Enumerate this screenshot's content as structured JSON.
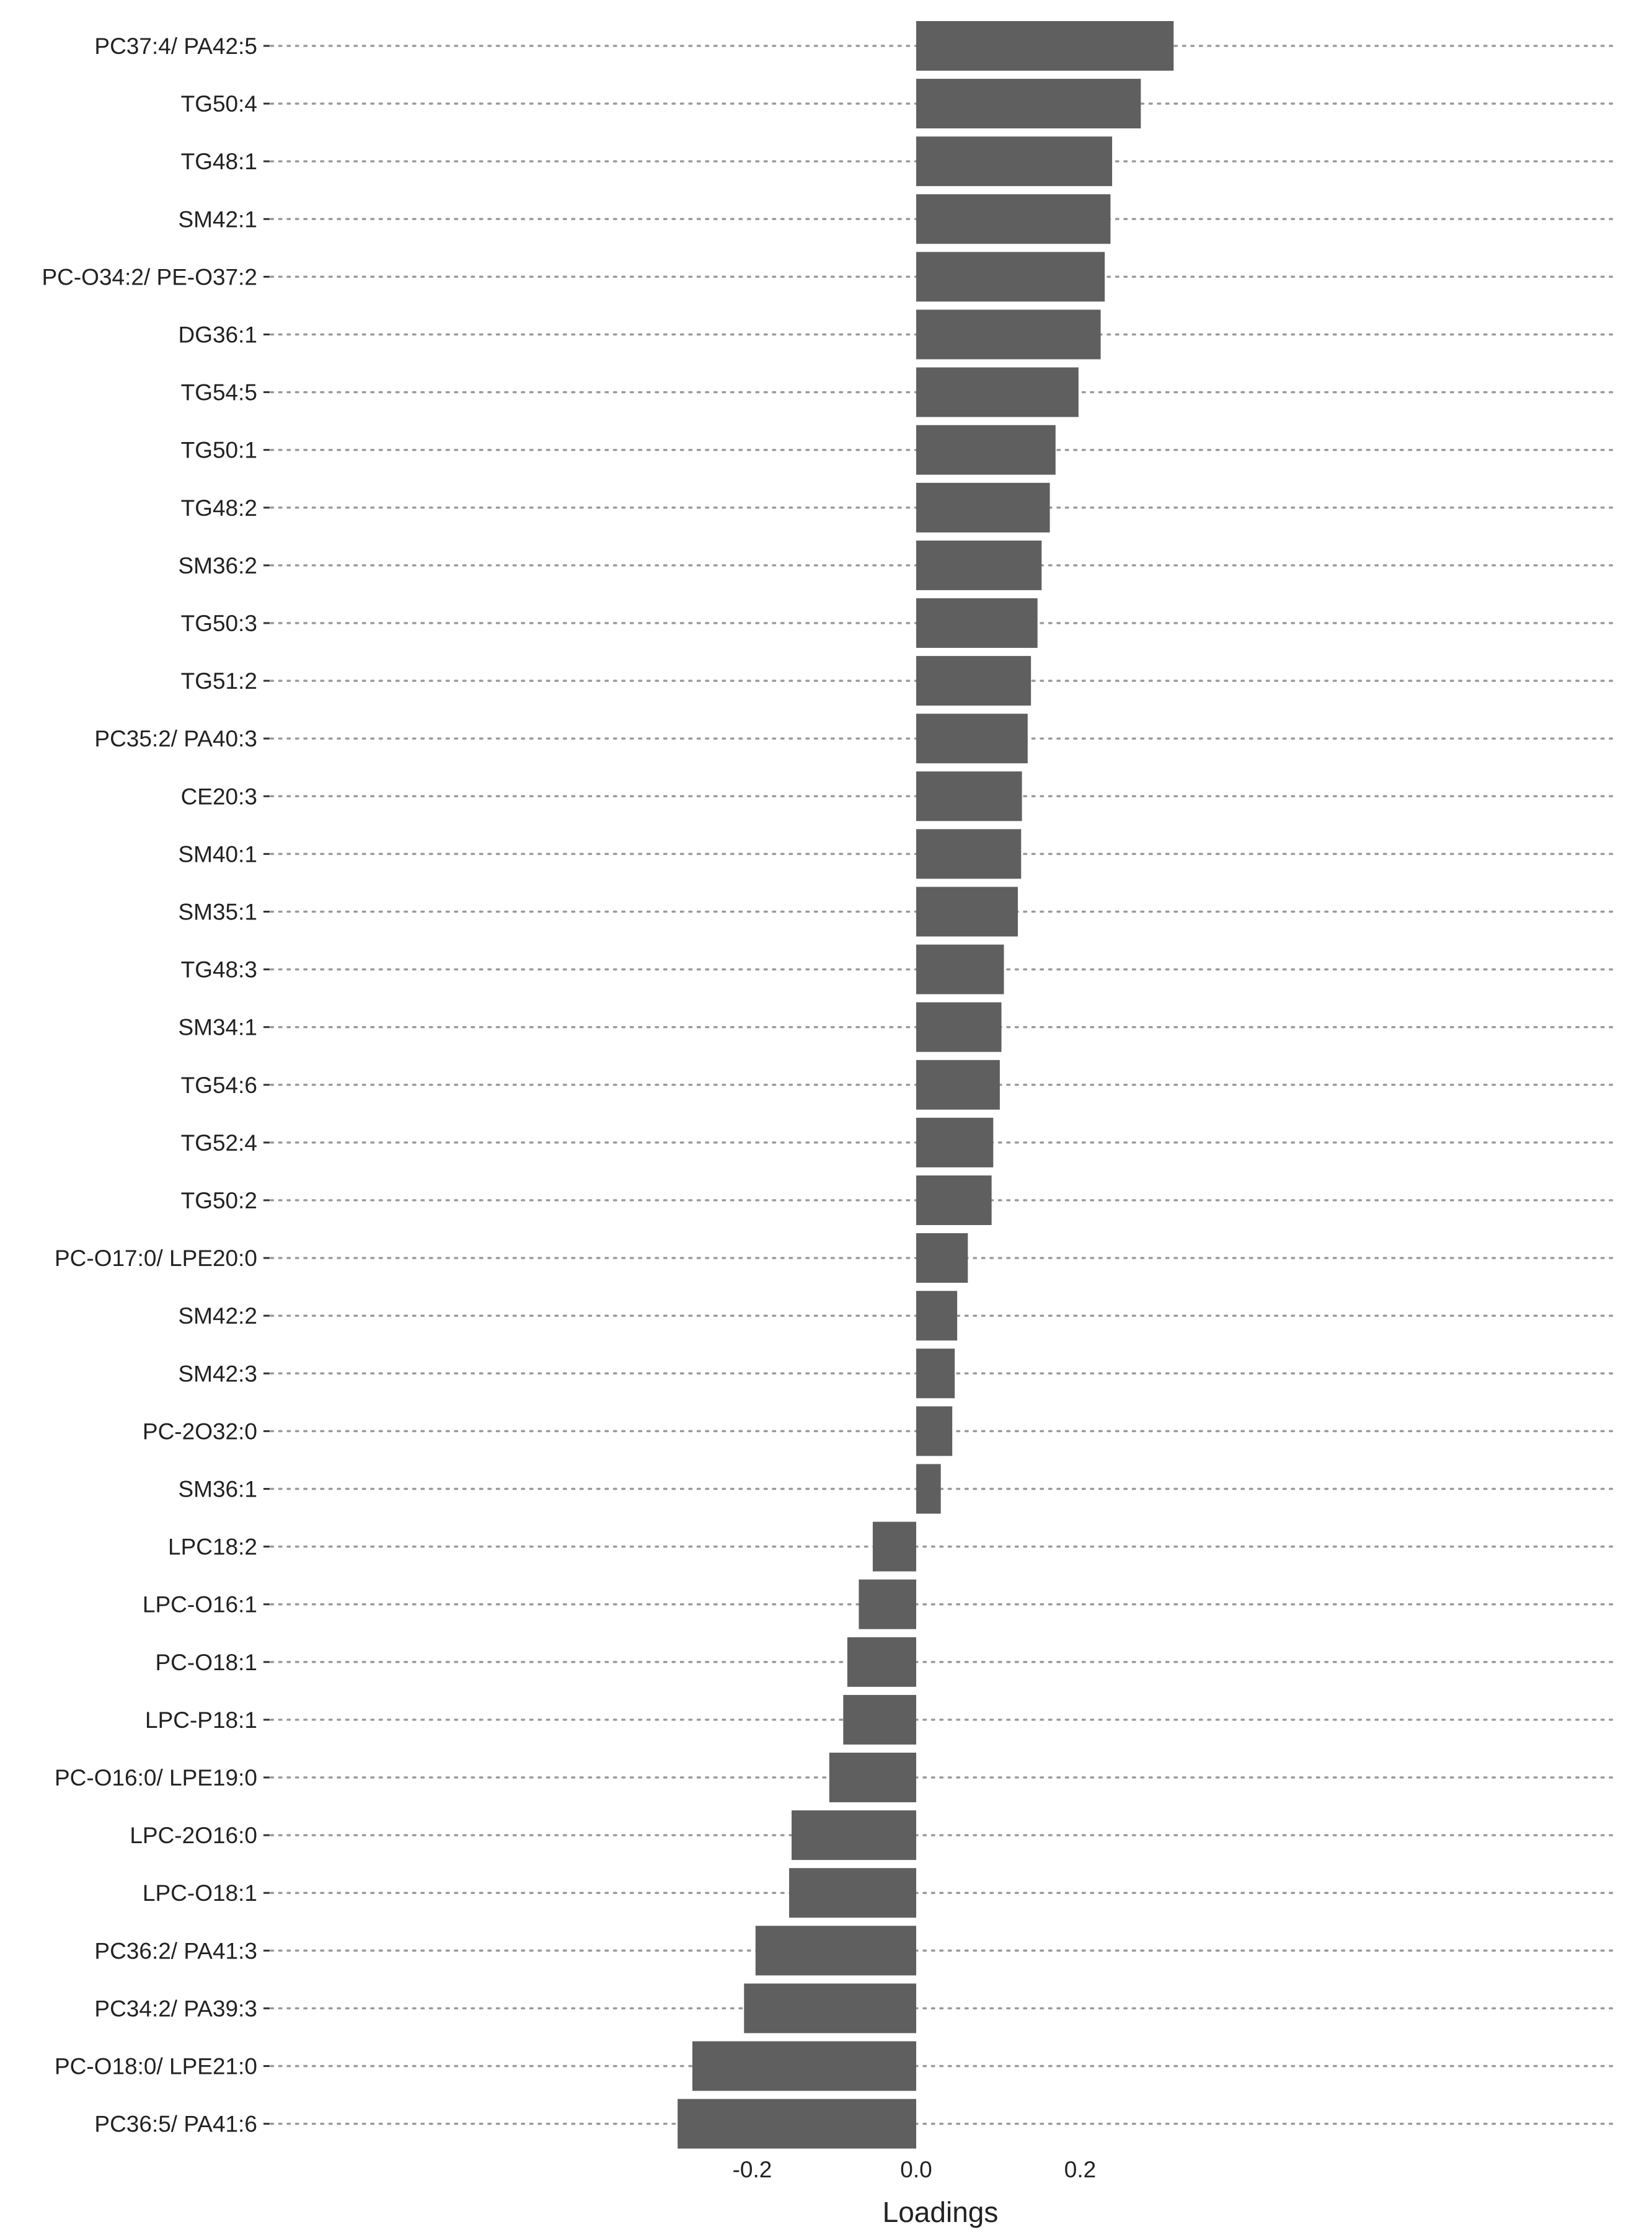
{
  "chart_data": {
    "type": "bar",
    "orientation": "horizontal",
    "title": "",
    "xlabel": "Loadings",
    "ylabel": "",
    "xlim": [
      -0.3,
      0.345
    ],
    "xticks": [
      -0.2,
      0.0,
      0.2
    ],
    "xtick_labels": [
      "-0.2",
      "0.0",
      "0.2"
    ],
    "grid": "dotted horizontal guide lines per category",
    "bar_color": "#5f5f5f",
    "grid_color": "#9a9a9a",
    "categories": [
      "PC37:4/ PA42:5",
      "TG50:4",
      "TG48:1",
      "SM42:1",
      "PC-O34:2/ PE-O37:2",
      "DG36:1",
      "TG54:5",
      "TG50:1",
      "TG48:2",
      "SM36:2",
      "TG50:3",
      "TG51:2",
      "PC35:2/ PA40:3",
      "CE20:3",
      "SM40:1",
      "SM35:1",
      "TG48:3",
      "SM34:1",
      "TG54:6",
      "TG52:4",
      "TG50:2",
      "PC-O17:0/ LPE20:0",
      "SM42:2",
      "SM42:3",
      "PC-2O32:0",
      "SM36:1",
      "LPC18:2",
      "LPC-O16:1",
      "PC-O18:1",
      "LPC-P18:1",
      "PC-O16:0/ LPE19:0",
      "LPC-2O16:0",
      "LPC-O18:1",
      "PC36:2/ PA41:3",
      "PC34:2/ PA39:3",
      "PC-O18:0/ LPE21:0",
      "PC36:5/ PA41:6"
    ],
    "values": [
      0.314,
      0.274,
      0.239,
      0.237,
      0.23,
      0.225,
      0.198,
      0.17,
      0.163,
      0.153,
      0.148,
      0.14,
      0.136,
      0.129,
      0.128,
      0.124,
      0.107,
      0.104,
      0.102,
      0.094,
      0.092,
      0.063,
      0.05,
      0.047,
      0.044,
      0.03,
      -0.053,
      -0.07,
      -0.084,
      -0.089,
      -0.106,
      -0.152,
      -0.155,
      -0.196,
      -0.21,
      -0.273,
      -0.291
    ]
  }
}
